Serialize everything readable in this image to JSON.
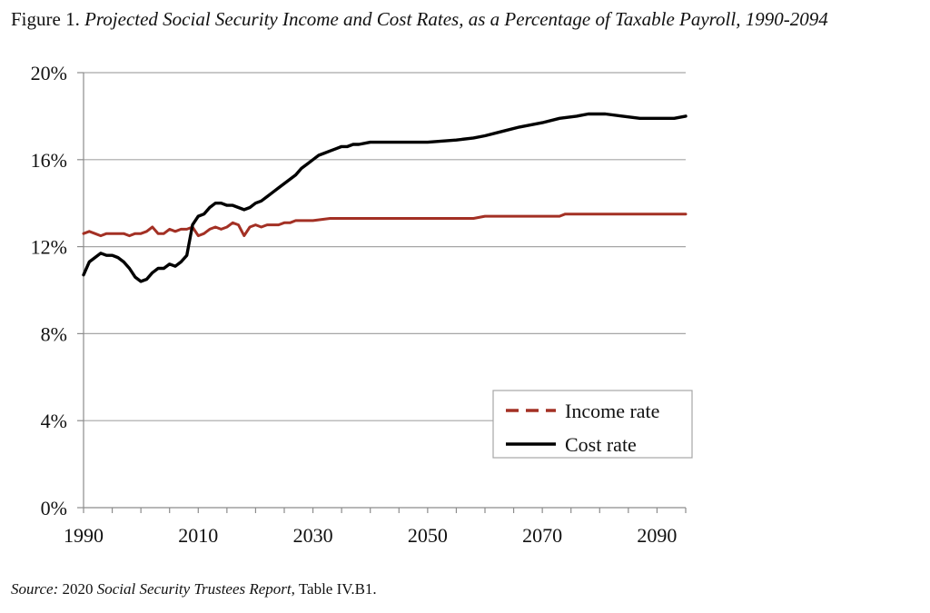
{
  "chart_data": {
    "type": "line",
    "title_prefix": "Figure 1.",
    "title_main": "Projected Social Security Income and Cost Rates, as a Percentage of Taxable Payroll, 1990-2094",
    "xlabel": "",
    "ylabel": "",
    "xlim": [
      1990,
      2095
    ],
    "ylim": [
      0,
      20
    ],
    "x_ticks": [
      "1990",
      "2010",
      "2030",
      "2050",
      "2070",
      "2090"
    ],
    "y_ticks": [
      "0%",
      "4%",
      "8%",
      "12%",
      "16%",
      "20%"
    ],
    "grid": "horizontal",
    "legend_position": "bottom-right",
    "series": [
      {
        "name": "Income rate",
        "color": "#a33024",
        "style": "dashed-legend",
        "points": [
          [
            1990,
            12.6
          ],
          [
            1991,
            12.7
          ],
          [
            1992,
            12.6
          ],
          [
            1993,
            12.5
          ],
          [
            1994,
            12.6
          ],
          [
            1995,
            12.6
          ],
          [
            1996,
            12.6
          ],
          [
            1997,
            12.6
          ],
          [
            1998,
            12.5
          ],
          [
            1999,
            12.6
          ],
          [
            2000,
            12.6
          ],
          [
            2001,
            12.7
          ],
          [
            2002,
            12.9
          ],
          [
            2003,
            12.6
          ],
          [
            2004,
            12.6
          ],
          [
            2005,
            12.8
          ],
          [
            2006,
            12.7
          ],
          [
            2007,
            12.8
          ],
          [
            2008,
            12.8
          ],
          [
            2009,
            12.9
          ],
          [
            2010,
            12.5
          ],
          [
            2011,
            12.6
          ],
          [
            2012,
            12.8
          ],
          [
            2013,
            12.9
          ],
          [
            2014,
            12.8
          ],
          [
            2015,
            12.9
          ],
          [
            2016,
            13.1
          ],
          [
            2017,
            13.0
          ],
          [
            2018,
            12.5
          ],
          [
            2019,
            12.9
          ],
          [
            2020,
            13.0
          ],
          [
            2021,
            12.9
          ],
          [
            2022,
            13.0
          ],
          [
            2023,
            13.0
          ],
          [
            2024,
            13.0
          ],
          [
            2025,
            13.1
          ],
          [
            2026,
            13.1
          ],
          [
            2027,
            13.2
          ],
          [
            2028,
            13.2
          ],
          [
            2029,
            13.2
          ],
          [
            2030,
            13.2
          ],
          [
            2033,
            13.3
          ],
          [
            2040,
            13.3
          ],
          [
            2050,
            13.3
          ],
          [
            2058,
            13.3
          ],
          [
            2060,
            13.4
          ],
          [
            2070,
            13.4
          ],
          [
            2073,
            13.4
          ],
          [
            2074,
            13.5
          ],
          [
            2080,
            13.5
          ],
          [
            2090,
            13.5
          ],
          [
            2095,
            13.5
          ]
        ]
      },
      {
        "name": "Cost rate",
        "color": "#000000",
        "style": "solid",
        "points": [
          [
            1990,
            10.7
          ],
          [
            1991,
            11.3
          ],
          [
            1992,
            11.5
          ],
          [
            1993,
            11.7
          ],
          [
            1994,
            11.6
          ],
          [
            1995,
            11.6
          ],
          [
            1996,
            11.5
          ],
          [
            1997,
            11.3
          ],
          [
            1998,
            11.0
          ],
          [
            1999,
            10.6
          ],
          [
            2000,
            10.4
          ],
          [
            2001,
            10.5
          ],
          [
            2002,
            10.8
          ],
          [
            2003,
            11.0
          ],
          [
            2004,
            11.0
          ],
          [
            2005,
            11.2
          ],
          [
            2006,
            11.1
          ],
          [
            2007,
            11.3
          ],
          [
            2008,
            11.6
          ],
          [
            2009,
            13.0
          ],
          [
            2010,
            13.4
          ],
          [
            2011,
            13.5
          ],
          [
            2012,
            13.8
          ],
          [
            2013,
            14.0
          ],
          [
            2014,
            14.0
          ],
          [
            2015,
            13.9
          ],
          [
            2016,
            13.9
          ],
          [
            2017,
            13.8
          ],
          [
            2018,
            13.7
          ],
          [
            2019,
            13.8
          ],
          [
            2020,
            14.0
          ],
          [
            2021,
            14.1
          ],
          [
            2022,
            14.3
          ],
          [
            2023,
            14.5
          ],
          [
            2024,
            14.7
          ],
          [
            2025,
            14.9
          ],
          [
            2026,
            15.1
          ],
          [
            2027,
            15.3
          ],
          [
            2028,
            15.6
          ],
          [
            2029,
            15.8
          ],
          [
            2030,
            16.0
          ],
          [
            2031,
            16.2
          ],
          [
            2032,
            16.3
          ],
          [
            2033,
            16.4
          ],
          [
            2034,
            16.5
          ],
          [
            2035,
            16.6
          ],
          [
            2036,
            16.6
          ],
          [
            2037,
            16.7
          ],
          [
            2038,
            16.7
          ],
          [
            2040,
            16.8
          ],
          [
            2045,
            16.8
          ],
          [
            2050,
            16.8
          ],
          [
            2055,
            16.9
          ],
          [
            2058,
            17.0
          ],
          [
            2060,
            17.1
          ],
          [
            2063,
            17.3
          ],
          [
            2066,
            17.5
          ],
          [
            2070,
            17.7
          ],
          [
            2073,
            17.9
          ],
          [
            2076,
            18.0
          ],
          [
            2078,
            18.1
          ],
          [
            2081,
            18.1
          ],
          [
            2084,
            18.0
          ],
          [
            2087,
            17.9
          ],
          [
            2090,
            17.9
          ],
          [
            2093,
            17.9
          ],
          [
            2095,
            18.0
          ]
        ]
      }
    ]
  },
  "source": {
    "label": "Source:",
    "part1": " 2020 ",
    "report": "Social Security Trustees Report",
    "part2": ", Table IV.B1."
  }
}
